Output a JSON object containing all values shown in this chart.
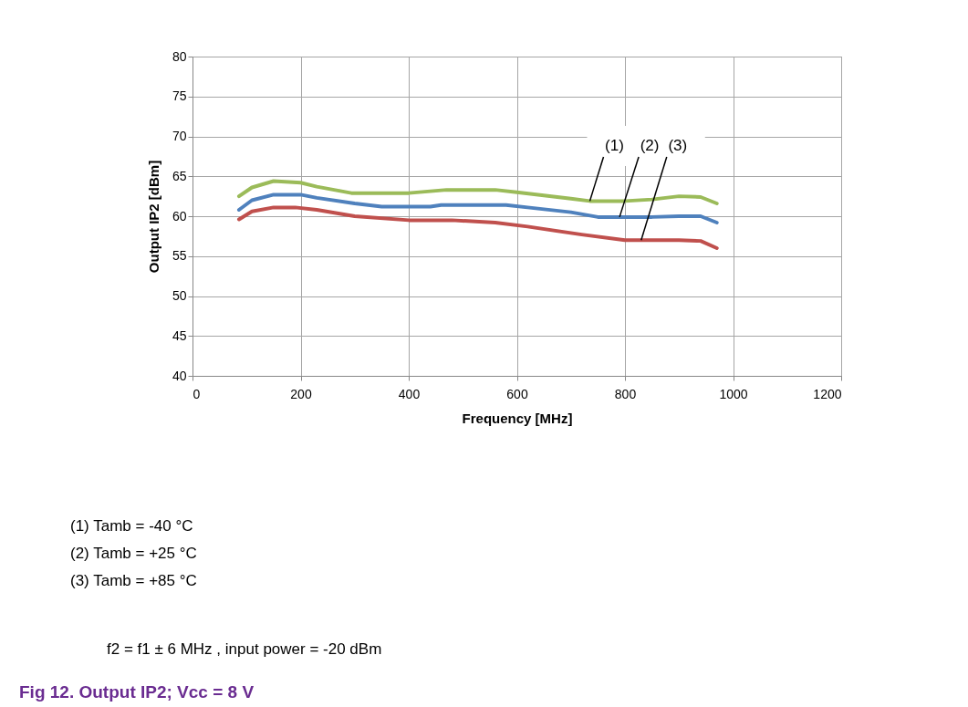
{
  "chart_data": {
    "type": "line",
    "title": "Fig 12.   Output IP2; Vcc = 8 V",
    "xlabel": "Frequency [MHz]",
    "ylabel": "Output IP2 [dBm]",
    "xlim": [
      0,
      1200
    ],
    "xticks": [
      0,
      200,
      400,
      600,
      800,
      1000,
      1200
    ],
    "ylim": [
      40,
      80
    ],
    "yticks": [
      40,
      45,
      50,
      55,
      60,
      65,
      70,
      75,
      80
    ],
    "grid": true,
    "series": [
      {
        "name": "(1)",
        "color": "#9bbb59",
        "x": [
          86,
          110,
          150,
          200,
          230,
          294,
          350,
          400,
          470,
          560,
          600,
          650,
          700,
          735,
          800,
          850,
          900,
          940,
          970
        ],
        "values": [
          62.5,
          63.6,
          64.4,
          64.2,
          63.7,
          62.9,
          62.9,
          62.9,
          63.3,
          63.3,
          63.0,
          62.6,
          62.2,
          61.9,
          61.9,
          62.1,
          62.5,
          62.4,
          61.6
        ]
      },
      {
        "name": "(2)",
        "color": "#4f81bd",
        "x": [
          86,
          110,
          150,
          200,
          230,
          300,
          350,
          440,
          460,
          580,
          620,
          700,
          750,
          790,
          850,
          900,
          940,
          970
        ],
        "values": [
          60.8,
          62.0,
          62.7,
          62.7,
          62.3,
          61.6,
          61.2,
          61.2,
          61.4,
          61.4,
          61.1,
          60.5,
          59.9,
          59.9,
          59.9,
          60.0,
          60.0,
          59.2
        ]
      },
      {
        "name": "(3)",
        "color": "#c0504d",
        "x": [
          86,
          110,
          150,
          190,
          230,
          300,
          400,
          480,
          560,
          620,
          720,
          800,
          830,
          900,
          940,
          970
        ],
        "values": [
          59.6,
          60.6,
          61.1,
          61.1,
          60.8,
          60.0,
          59.5,
          59.5,
          59.2,
          58.7,
          57.7,
          57.0,
          57.0,
          57.0,
          56.9,
          56.0
        ]
      }
    ],
    "annotations": [
      "(1)    Tamb = -40 °C",
      "(2)    Tamb = +25 °C",
      "(3)    Tamb = +85 °C",
      "f2 = f1 ± 6 MHz , input power = -20 dBm"
    ]
  }
}
